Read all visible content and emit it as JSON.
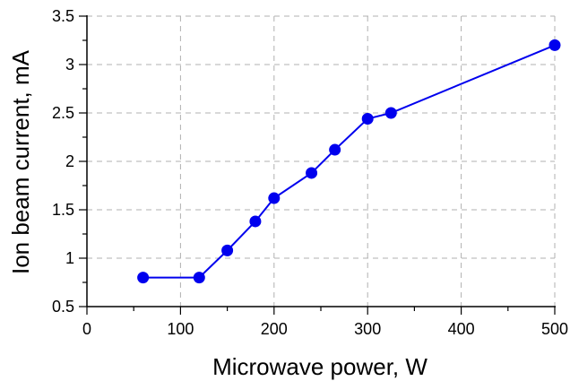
{
  "chart_data": {
    "type": "line",
    "title": "",
    "xlabel": "Microwave power, W",
    "ylabel": "Ion beam current, mA",
    "xlim": [
      0,
      500
    ],
    "ylim": [
      0.5,
      3.5
    ],
    "xticks": [
      0,
      100,
      200,
      300,
      400,
      500
    ],
    "yticks": [
      0.5,
      1,
      1.5,
      2,
      2.5,
      3,
      3.5
    ],
    "xtick_labels": [
      "0",
      "100",
      "200",
      "300",
      "400",
      "500"
    ],
    "ytick_labels": [
      "0.5",
      "1",
      "1.5",
      "2",
      "2.5",
      "3",
      "3.5"
    ],
    "grid": true,
    "series": [
      {
        "color": "#0000ee",
        "marker": "circle",
        "x": [
          60,
          120,
          150,
          180,
          200,
          240,
          265,
          300,
          325,
          500
        ],
        "y": [
          0.8,
          0.8,
          1.08,
          1.38,
          1.62,
          1.88,
          2.12,
          2.44,
          2.5,
          3.2
        ]
      }
    ]
  }
}
